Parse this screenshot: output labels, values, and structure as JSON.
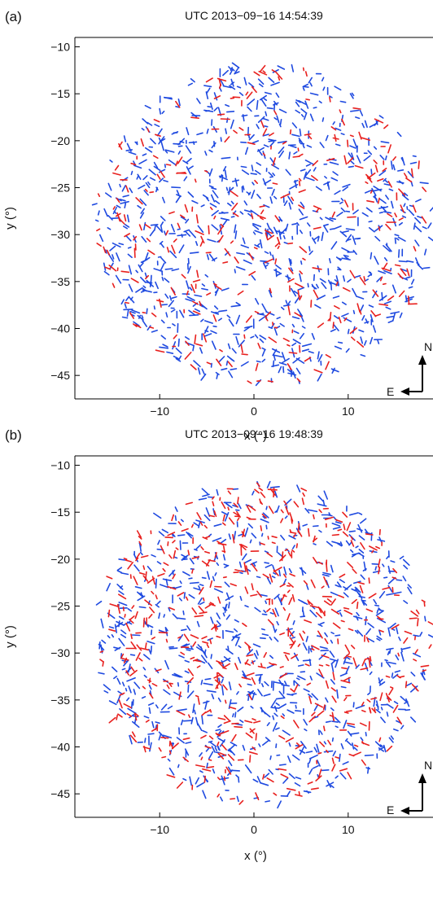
{
  "colors": {
    "blue": "#1f4ae0",
    "red": "#e8201e",
    "axis": "#000000"
  },
  "chart_data": [
    {
      "type": "scatter",
      "panel_label": "(a)",
      "title": "UTC 2013−09−16 14:54:39",
      "xlabel": "x (°)",
      "ylabel": "y (°)",
      "xlim": [
        -19,
        19
      ],
      "ylim": [
        -47.5,
        -9
      ],
      "xticks": [
        -10,
        0,
        10
      ],
      "xtick_labels": [
        "−10",
        "0",
        "10"
      ],
      "yticks": [
        -10,
        -15,
        -20,
        -25,
        -30,
        -35,
        -40,
        -45
      ],
      "ytick_labels": [
        "−10",
        "−15",
        "−20",
        "−25",
        "−30",
        "−35",
        "−40",
        "−45"
      ],
      "grid": false,
      "compass": {
        "north": "N",
        "east": "E"
      },
      "series": [
        {
          "color": "blue",
          "marker": "arrow",
          "field": {
            "center": [
              1,
              -29
            ],
            "radius": 17,
            "count": 900,
            "seed": 11
          }
        },
        {
          "color": "red",
          "marker": "arrow",
          "field": {
            "center": [
              1,
              -29
            ],
            "radius": 17,
            "count": 320,
            "seed": 23
          }
        }
      ]
    },
    {
      "type": "scatter",
      "panel_label": "(b)",
      "title": "UTC 2013−09−16 19:48:39",
      "xlabel": "x (°)",
      "ylabel": "y (°)",
      "xlim": [
        -19,
        19
      ],
      "ylim": [
        -47.5,
        -9
      ],
      "xticks": [
        -10,
        0,
        10
      ],
      "xtick_labels": [
        "−10",
        "0",
        "10"
      ],
      "yticks": [
        -10,
        -15,
        -20,
        -25,
        -30,
        -35,
        -40,
        -45
      ],
      "ytick_labels": [
        "−10",
        "−15",
        "−20",
        "−25",
        "−30",
        "−35",
        "−40",
        "−45"
      ],
      "grid": false,
      "compass": {
        "north": "N",
        "east": "E"
      },
      "series": [
        {
          "color": "blue",
          "marker": "arrow",
          "field": {
            "center": [
              1,
              -29
            ],
            "radius": 17,
            "count": 820,
            "seed": 37
          }
        },
        {
          "color": "red",
          "marker": "arrow",
          "field": {
            "center": [
              1,
              -29
            ],
            "radius": 17,
            "count": 560,
            "seed": 53
          }
        }
      ]
    }
  ]
}
